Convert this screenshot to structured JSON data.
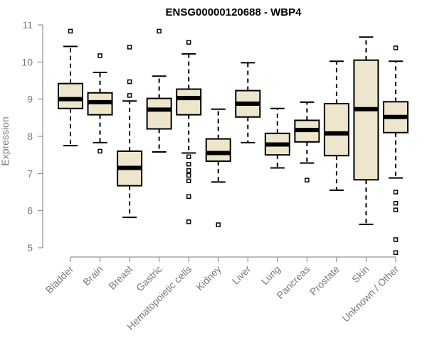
{
  "chart_data": {
    "type": "boxplot",
    "title": "ENSG00000120688 - WBP4",
    "xlabel": "",
    "ylabel": "Expression",
    "ylim": [
      4.8,
      11.1
    ],
    "yticks": [
      5,
      6,
      7,
      8,
      9,
      10,
      11
    ],
    "box_fill": "#ede6cc",
    "box_stroke": "#000000",
    "categories": [
      "Bladder",
      "Brain",
      "Breast",
      "Gastric",
      "Hematopoietic cells",
      "Kidney",
      "Liver",
      "Lung",
      "Pancreas",
      "Prostate",
      "Skin",
      "Unknown / Other"
    ],
    "boxes": [
      {
        "whisker_low": 7.75,
        "q1": 8.75,
        "median": 9.0,
        "q3": 9.42,
        "whisker_high": 10.42,
        "outliers": [
          10.83
        ]
      },
      {
        "whisker_low": 7.83,
        "q1": 8.58,
        "median": 8.92,
        "q3": 9.17,
        "whisker_high": 9.72,
        "outliers": [
          10.17,
          7.6
        ]
      },
      {
        "whisker_low": 5.82,
        "q1": 6.67,
        "median": 7.15,
        "q3": 7.6,
        "whisker_high": 8.95,
        "outliers": [
          10.4,
          9.47,
          9.1
        ]
      },
      {
        "whisker_low": 7.58,
        "q1": 8.2,
        "median": 8.72,
        "q3": 9.02,
        "whisker_high": 9.62,
        "outliers": [
          10.83
        ]
      },
      {
        "whisker_low": 7.55,
        "q1": 8.58,
        "median": 9.03,
        "q3": 9.27,
        "whisker_high": 10.22,
        "outliers": [
          10.53,
          7.45,
          7.25,
          7.08,
          6.95,
          6.8,
          6.38,
          5.7
        ]
      },
      {
        "whisker_low": 6.77,
        "q1": 7.33,
        "median": 7.55,
        "q3": 7.93,
        "whisker_high": 8.73,
        "outliers": [
          5.62
        ]
      },
      {
        "whisker_low": 7.83,
        "q1": 8.52,
        "median": 8.88,
        "q3": 9.23,
        "whisker_high": 9.98,
        "outliers": []
      },
      {
        "whisker_low": 7.15,
        "q1": 7.5,
        "median": 7.78,
        "q3": 8.08,
        "whisker_high": 8.75,
        "outliers": []
      },
      {
        "whisker_low": 7.28,
        "q1": 7.85,
        "median": 8.17,
        "q3": 8.43,
        "whisker_high": 8.92,
        "outliers": [
          6.82
        ]
      },
      {
        "whisker_low": 6.55,
        "q1": 7.48,
        "median": 8.08,
        "q3": 8.88,
        "whisker_high": 10.02,
        "outliers": []
      },
      {
        "whisker_low": 5.63,
        "q1": 6.83,
        "median": 8.73,
        "q3": 10.05,
        "whisker_high": 10.67,
        "outliers": []
      },
      {
        "whisker_low": 6.88,
        "q1": 8.1,
        "median": 8.52,
        "q3": 8.93,
        "whisker_high": 10.02,
        "outliers": [
          10.38,
          6.5,
          6.2,
          6.02,
          5.22,
          4.87
        ]
      }
    ]
  }
}
